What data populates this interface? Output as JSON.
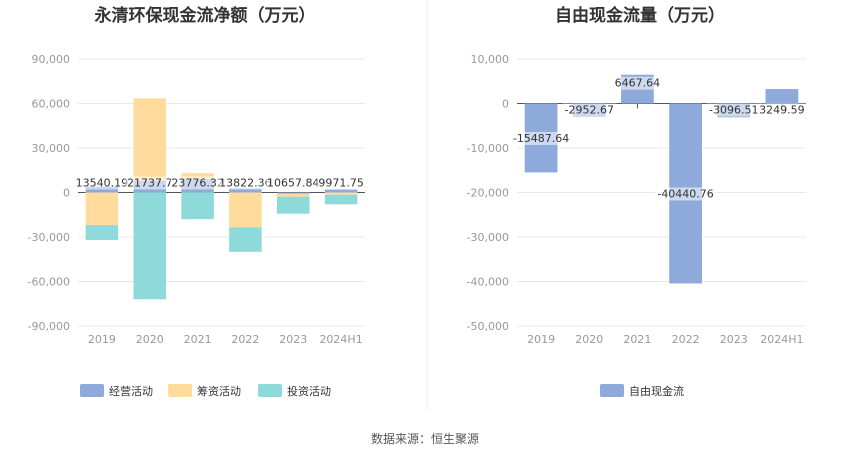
{
  "chart_data": [
    {
      "type": "bar",
      "stacked": true,
      "title": "永清环保现金流净额（万元）",
      "categories": [
        "2019",
        "2020",
        "2021",
        "2022",
        "2023",
        "2024H1"
      ],
      "ylim": [
        -90000,
        90000
      ],
      "yticks": [
        "90,000",
        "60,000",
        "30,000",
        "0",
        "-30,000",
        "-60,000",
        "-90,000"
      ],
      "grid": true,
      "legend_position": "bottom",
      "series": [
        {
          "name": "经营活动",
          "color": "#8eaadb",
          "values": [
            4000,
            8000,
            9000,
            2800,
            -800,
            2000
          ]
        },
        {
          "name": "筹资活动",
          "color": "#ffdb9e",
          "values": [
            -22000,
            55500,
            4000,
            -23500,
            -2000,
            -1500
          ]
        },
        {
          "name": "投资活动",
          "color": "#8ed9da",
          "values": [
            -10000,
            -72000,
            -18000,
            -16500,
            -11500,
            -6500
          ]
        }
      ],
      "data_labels": [
        "13540.19",
        "21737.7",
        "23776.32",
        "13822.36",
        "10657.84",
        "9971.75"
      ]
    },
    {
      "type": "bar",
      "title": "自由现金流量（万元）",
      "categories": [
        "2019",
        "2020",
        "2021",
        "2022",
        "2023",
        "2024H1"
      ],
      "ylim": [
        -50000,
        10000
      ],
      "yticks": [
        "10,000",
        "0",
        "-10,000",
        "-20,000",
        "-30,000",
        "-40,000",
        "-50,000"
      ],
      "grid": true,
      "legend_position": "bottom",
      "series": [
        {
          "name": "自由现金流",
          "color": "#8eaadb",
          "values": [
            -15487.64,
            -2952.67,
            6467.64,
            -40440.76,
            -3096.51,
            3249.59
          ]
        }
      ],
      "data_labels": [
        "-15487.64",
        "-2952.67",
        "6467.64",
        "-40440.76",
        "-3096.51",
        "3249.59"
      ]
    }
  ],
  "footer": {
    "source": "数据来源：恒生聚源"
  }
}
